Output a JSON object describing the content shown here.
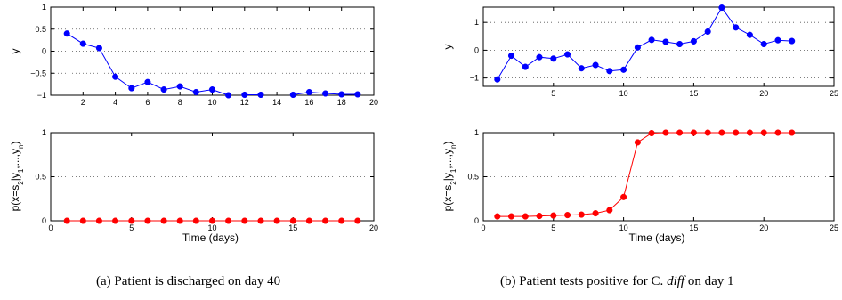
{
  "chart_data": [
    {
      "type": "line",
      "panel": "a-top",
      "ylabel": "y",
      "xlim": [
        0,
        20
      ],
      "ylim": [
        -1,
        1
      ],
      "xticks": [
        "2",
        "4",
        "6",
        "8",
        "10",
        "12",
        "14",
        "16",
        "18",
        "20"
      ],
      "yticks": [
        "1",
        "0.5",
        "0",
        "−0.5",
        "−1"
      ],
      "grid": "dotted horizontal",
      "color": "#0000ff",
      "series": [
        {
          "segments": [
            {
              "x": [
                1,
                2,
                3,
                4,
                5,
                6,
                7,
                8,
                9,
                10,
                11
              ],
              "y": [
                0.4,
                0.17,
                0.07,
                -0.58,
                -0.84,
                -0.7,
                -0.87,
                -0.8,
                -0.93,
                -0.87,
                -1.0
              ]
            },
            {
              "x": [
                12,
                13
              ],
              "y": [
                -0.99,
                -0.99
              ]
            },
            {
              "x": [
                15,
                16,
                17,
                18,
                19
              ],
              "y": [
                -0.99,
                -0.93,
                -0.96,
                -0.98,
                -0.98
              ]
            }
          ]
        }
      ]
    },
    {
      "type": "line",
      "panel": "a-bottom",
      "xlabel": "Time (days)",
      "xlim": [
        0,
        20
      ],
      "ylim": [
        0,
        1
      ],
      "xticks": [
        "0",
        "5",
        "10",
        "15",
        "20"
      ],
      "yticks": [
        "1",
        "0.5",
        "0"
      ],
      "grid": "dotted horizontal",
      "color": "#ff0000",
      "series": [
        {
          "x": [
            1,
            2,
            3,
            4,
            5,
            6,
            7,
            8,
            9,
            10,
            11,
            12,
            13,
            14,
            15,
            16,
            17,
            18,
            19
          ],
          "y": [
            0,
            0,
            0,
            0,
            0,
            0,
            0,
            0,
            0,
            0,
            0,
            0,
            0,
            0,
            0,
            0,
            0,
            0,
            0
          ]
        }
      ]
    },
    {
      "type": "line",
      "panel": "b-top",
      "ylabel": "y",
      "xlim": [
        0,
        25
      ],
      "ylim": [
        -1.3,
        1.55
      ],
      "xticks": [
        "5",
        "10",
        "15",
        "20",
        "25"
      ],
      "yticks": [
        "1",
        "0",
        "−1"
      ],
      "grid": "dotted horizontal",
      "color": "#0000ff",
      "series": [
        {
          "x": [
            1,
            2,
            3,
            4,
            5,
            6,
            7,
            8,
            9,
            10,
            11,
            12,
            13,
            14,
            15,
            16,
            17,
            18,
            19,
            20,
            21,
            22
          ],
          "y": [
            -1.05,
            -0.2,
            -0.6,
            -0.25,
            -0.3,
            -0.15,
            -0.65,
            -0.53,
            -0.75,
            -0.7,
            0.1,
            0.37,
            0.3,
            0.22,
            0.32,
            0.67,
            1.53,
            0.82,
            0.55,
            0.22,
            0.36,
            0.33
          ]
        }
      ]
    },
    {
      "type": "line",
      "panel": "b-bottom",
      "xlabel": "Time (days)",
      "xlim": [
        0,
        25
      ],
      "ylim": [
        0,
        1
      ],
      "xticks": [
        "0",
        "5",
        "10",
        "15",
        "20",
        "25"
      ],
      "yticks": [
        "1",
        "0.5",
        "0"
      ],
      "grid": "dotted horizontal",
      "color": "#ff0000",
      "series": [
        {
          "x": [
            1,
            2,
            3,
            4,
            5,
            6,
            7,
            8,
            9,
            10,
            11,
            12,
            13,
            14,
            15,
            16,
            17,
            18,
            19,
            20,
            21,
            22
          ],
          "y": [
            0.05,
            0.05,
            0.05,
            0.055,
            0.06,
            0.065,
            0.07,
            0.085,
            0.12,
            0.27,
            0.89,
            0.995,
            1,
            1,
            1,
            1,
            1,
            1,
            1,
            1,
            1,
            1
          ]
        }
      ]
    }
  ],
  "shared_ylabel_bottom": "p(x=s2|y1,...,yn)",
  "captions": {
    "a": "(a) Patient is discharged on day 40",
    "b_pre": "(b) Patient tests positive for C. ",
    "b_italic": "diff",
    "b_post": " on day 1"
  }
}
